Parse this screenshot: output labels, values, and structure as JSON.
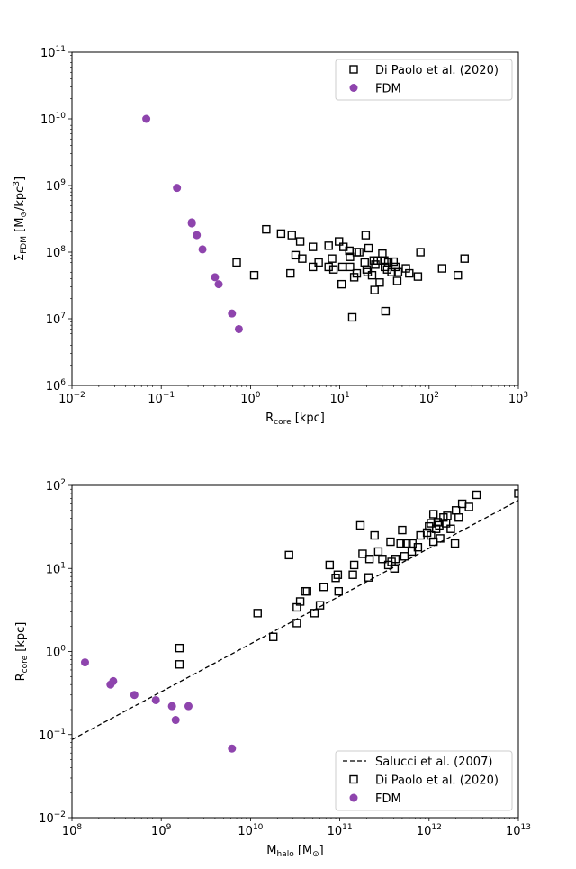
{
  "chart_data": [
    {
      "type": "scatter",
      "title": "",
      "xlabel": "R_core [kpc]",
      "ylabel": "Σ_FDM [M_⊙/kpc^3]",
      "xscale": "log",
      "yscale": "log",
      "xlim": [
        0.01,
        1000
      ],
      "ylim": [
        1000000,
        100000000000
      ],
      "x_ticks": [
        0.01,
        0.1,
        1,
        10,
        100,
        1000
      ],
      "y_ticks": [
        1000000,
        10000000,
        100000000,
        1000000000,
        10000000000,
        100000000000
      ],
      "x_tick_labels": [
        {
          "base": "10",
          "exp": "−2"
        },
        {
          "base": "10",
          "exp": "−1"
        },
        {
          "base": "10",
          "exp": "0"
        },
        {
          "base": "10",
          "exp": "1"
        },
        {
          "base": "10",
          "exp": "2"
        },
        {
          "base": "10",
          "exp": "3"
        }
      ],
      "y_tick_labels": [
        {
          "base": "10",
          "exp": "6"
        },
        {
          "base": "10",
          "exp": "7"
        },
        {
          "base": "10",
          "exp": "8"
        },
        {
          "base": "10",
          "exp": "9"
        },
        {
          "base": "10",
          "exp": "10"
        },
        {
          "base": "10",
          "exp": "11"
        }
      ],
      "legend_position": "top-right",
      "series": [
        {
          "name": "Di Paolo et al. (2020)",
          "marker": "open-square",
          "color": "#000000",
          "points": [
            [
              0.7,
              70000000
            ],
            [
              1.1,
              45000000
            ],
            [
              1.5,
              220000000
            ],
            [
              2.2,
              190000000
            ],
            [
              2.8,
              48000000
            ],
            [
              2.9,
              180000000
            ],
            [
              3.2,
              90000000
            ],
            [
              3.6,
              145000000
            ],
            [
              3.8,
              80000000
            ],
            [
              5.0,
              60000000
            ],
            [
              5.0,
              120000000
            ],
            [
              5.8,
              70000000
            ],
            [
              7.5,
              125000000
            ],
            [
              7.5,
              60000000
            ],
            [
              8.2,
              80000000
            ],
            [
              8.5,
              55000000
            ],
            [
              9.8,
              145000000
            ],
            [
              10.5,
              33000000
            ],
            [
              10.7,
              60000000
            ],
            [
              11.0,
              120000000
            ],
            [
              12.8,
              105000000
            ],
            [
              13.0,
              85000000
            ],
            [
              13.0,
              60000000
            ],
            [
              13.8,
              10500000
            ],
            [
              14.5,
              42000000
            ],
            [
              15.5,
              48000000
            ],
            [
              15.5,
              100000000
            ],
            [
              16.5,
              100000000
            ],
            [
              19.0,
              70000000
            ],
            [
              19.5,
              180000000
            ],
            [
              20.0,
              55000000
            ],
            [
              20.5,
              50000000
            ],
            [
              21.0,
              115000000
            ],
            [
              23.0,
              45000000
            ],
            [
              24.0,
              75000000
            ],
            [
              24.5,
              27000000
            ],
            [
              25.0,
              65000000
            ],
            [
              26.5,
              75000000
            ],
            [
              28.0,
              35000000
            ],
            [
              30.0,
              95000000
            ],
            [
              31.5,
              75000000
            ],
            [
              32.0,
              60000000
            ],
            [
              32.5,
              13000000
            ],
            [
              34.0,
              55000000
            ],
            [
              35.0,
              70000000
            ],
            [
              38.0,
              50000000
            ],
            [
              40.0,
              72000000
            ],
            [
              42.0,
              60000000
            ],
            [
              44.0,
              37000000
            ],
            [
              45.0,
              50000000
            ],
            [
              55.0,
              57000000
            ],
            [
              60.0,
              48000000
            ],
            [
              75.0,
              43000000
            ],
            [
              80.0,
              100000000
            ],
            [
              140.0,
              57000000
            ],
            [
              210.0,
              45000000
            ],
            [
              250.0,
              80000000
            ]
          ]
        },
        {
          "name": "FDM",
          "marker": "filled-circle",
          "color": "#8e44ad",
          "points": [
            [
              0.068,
              10000000000
            ],
            [
              0.15,
              920000000
            ],
            [
              0.22,
              280000000
            ],
            [
              0.22,
              270000000
            ],
            [
              0.25,
              180000000
            ],
            [
              0.29,
              110000000
            ],
            [
              0.4,
              42000000
            ],
            [
              0.44,
              33000000
            ],
            [
              0.62,
              12000000
            ],
            [
              0.74,
              7000000
            ]
          ]
        }
      ]
    },
    {
      "type": "scatter",
      "title": "",
      "xlabel": "M_halo [M_⊙]",
      "ylabel": "R_core [kpc]",
      "xscale": "log",
      "yscale": "log",
      "xlim": [
        100000000,
        10000000000000
      ],
      "ylim": [
        0.01,
        100
      ],
      "x_ticks": [
        100000000,
        1000000000,
        10000000000,
        100000000000,
        1000000000000,
        10000000000000
      ],
      "y_ticks": [
        0.01,
        0.1,
        1,
        10,
        100
      ],
      "x_tick_labels": [
        {
          "base": "10",
          "exp": "8"
        },
        {
          "base": "10",
          "exp": "9"
        },
        {
          "base": "10",
          "exp": "10"
        },
        {
          "base": "10",
          "exp": "11"
        },
        {
          "base": "10",
          "exp": "12"
        },
        {
          "base": "10",
          "exp": "13"
        }
      ],
      "y_tick_labels": [
        {
          "base": "10",
          "exp": "−2"
        },
        {
          "base": "10",
          "exp": "−1"
        },
        {
          "base": "10",
          "exp": "0"
        },
        {
          "base": "10",
          "exp": "1"
        },
        {
          "base": "10",
          "exp": "2"
        }
      ],
      "legend_position": "bottom-right",
      "lines": [
        {
          "name": "Salucci et al. (2007)",
          "style": "dashed",
          "color": "#000000",
          "points": [
            [
              100000000,
              0.087
            ],
            [
              10000000000000,
              66
            ]
          ]
        }
      ],
      "series": [
        {
          "name": "Di Paolo et al. (2020)",
          "marker": "open-square",
          "color": "#000000",
          "points": [
            [
              1600000000,
              1.1
            ],
            [
              1600000000,
              0.7
            ],
            [
              12000000000,
              2.9
            ],
            [
              18000000000,
              1.5
            ],
            [
              27000000000,
              14.5
            ],
            [
              33000000000,
              3.4
            ],
            [
              33000000000,
              2.2
            ],
            [
              36000000000,
              4.0
            ],
            [
              41000000000,
              5.3
            ],
            [
              43000000000,
              5.3
            ],
            [
              52000000000,
              2.9
            ],
            [
              60000000000,
              3.6
            ],
            [
              66000000000,
              6.0
            ],
            [
              77000000000,
              11.0
            ],
            [
              90000000000,
              7.7
            ],
            [
              95000000000,
              8.4
            ],
            [
              97000000000,
              5.3
            ],
            [
              140000000000,
              8.4
            ],
            [
              145000000000,
              11.0
            ],
            [
              170000000000,
              33.0
            ],
            [
              180000000000,
              15.0
            ],
            [
              210000000000,
              7.8
            ],
            [
              215000000000,
              13.0
            ],
            [
              245000000000,
              25.0
            ],
            [
              270000000000,
              16.0
            ],
            [
              300000000000,
              13.0
            ],
            [
              350000000000,
              11.0
            ],
            [
              370000000000,
              21.0
            ],
            [
              380000000000,
              12.0
            ],
            [
              410000000000,
              10.0
            ],
            [
              420000000000,
              13.0
            ],
            [
              480000000000,
              20.0
            ],
            [
              500000000000,
              29.0
            ],
            [
              530000000000,
              14.0
            ],
            [
              560000000000,
              20.0
            ],
            [
              640000000000,
              16.0
            ],
            [
              650000000000,
              20.0
            ],
            [
              750000000000,
              18.0
            ],
            [
              800000000000,
              25.0
            ],
            [
              950000000000,
              27.0
            ],
            [
              1000000000000,
              32.0
            ],
            [
              1050000000000,
              35.0
            ],
            [
              1050000000000,
              25.0
            ],
            [
              1120000000000,
              45.0
            ],
            [
              1120000000000,
              21.0
            ],
            [
              1200000000000,
              30.0
            ],
            [
              1250000000000,
              36.0
            ],
            [
              1300000000000,
              33.0
            ],
            [
              1330000000000,
              23.0
            ],
            [
              1450000000000,
              41.0
            ],
            [
              1550000000000,
              35.0
            ],
            [
              1600000000000,
              43.0
            ],
            [
              1750000000000,
              30.0
            ],
            [
              1950000000000,
              20.0
            ],
            [
              2000000000000,
              50.0
            ],
            [
              2150000000000,
              41.0
            ],
            [
              2350000000000,
              60.0
            ],
            [
              2800000000000,
              55.0
            ],
            [
              3400000000000,
              77.0
            ],
            [
              10000000000000,
              80.0
            ]
          ]
        },
        {
          "name": "FDM",
          "marker": "filled-circle",
          "color": "#8e44ad",
          "points": [
            [
              140000000,
              0.74
            ],
            [
              270000000,
              0.4
            ],
            [
              290000000,
              0.44
            ],
            [
              500000000,
              0.3
            ],
            [
              870000000,
              0.26
            ],
            [
              1320000000,
              0.22
            ],
            [
              1450000000,
              0.15
            ],
            [
              2020000000,
              0.22
            ],
            [
              6200000000,
              0.068
            ]
          ]
        }
      ]
    }
  ]
}
